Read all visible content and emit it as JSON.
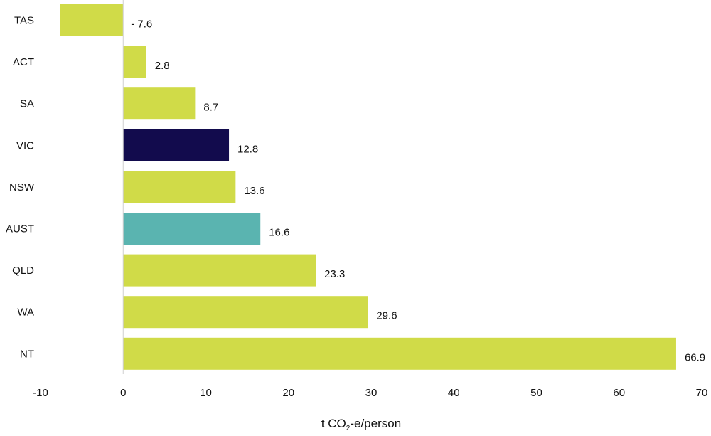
{
  "chart_data": {
    "type": "bar",
    "orientation": "horizontal",
    "categories": [
      "TAS",
      "ACT",
      "SA",
      "VIC",
      "NSW",
      "AUST",
      "QLD",
      "WA",
      "NT"
    ],
    "values": [
      -7.6,
      2.8,
      8.7,
      12.8,
      13.6,
      16.6,
      23.3,
      29.6,
      66.9
    ],
    "value_labels": [
      "- 7.6",
      "2.8",
      "8.7",
      "12.8",
      "13.6",
      "16.6",
      "23.3",
      "29.6",
      "66.9"
    ],
    "bar_colors": [
      "#d0db48",
      "#d0db48",
      "#d0db48",
      "#120b4d",
      "#d0db48",
      "#5ab4b0",
      "#d0db48",
      "#d0db48",
      "#d0db48"
    ],
    "xlim": [
      -10,
      70
    ],
    "xticks": [
      -10,
      0,
      10,
      20,
      30,
      40,
      50,
      60,
      70
    ],
    "xlabel": {
      "prefix": "t CO",
      "subscript": "2",
      "suffix": "-e/person"
    },
    "title": "",
    "grid": false
  }
}
